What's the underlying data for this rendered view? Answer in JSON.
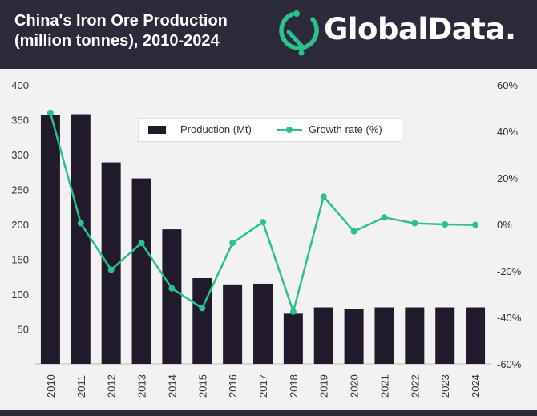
{
  "header": {
    "title_line1": "China's Iron Ore Production",
    "title_line2": "(million tonnes), 2010-2024",
    "brand": "GlobalData."
  },
  "colors": {
    "header_bg": "#2b2a3a",
    "bar": "#211a2c",
    "line": "#2ebf8e",
    "plot_bg": "#f2f2f2",
    "brand_accent": "#2ebf8e"
  },
  "icons": [
    "globaldata-logo-icon"
  ],
  "chart_data": {
    "type": "bar",
    "categories": [
      "2010",
      "2011",
      "2012",
      "2013",
      "2014",
      "2015",
      "2016",
      "2017",
      "2018",
      "2019",
      "2020",
      "2021",
      "2022",
      "2023",
      "2024"
    ],
    "series": [
      {
        "name": "Production (Mt)",
        "type": "bar",
        "axis": "left",
        "values": [
          357,
          358,
          289,
          266,
          193,
          123,
          114,
          115,
          72,
          81,
          79,
          81,
          81,
          81,
          81
        ]
      },
      {
        "name": "Growth rate (%)",
        "type": "line",
        "axis": "right",
        "values": [
          48,
          0.5,
          -19.5,
          -8,
          -27.5,
          -36,
          -8,
          1,
          -37.5,
          12,
          -3,
          3,
          0.5,
          0,
          -0.2
        ]
      }
    ],
    "left_axis": {
      "min": 0,
      "max": 400,
      "ticks": [
        "50",
        "100",
        "150",
        "200",
        "250",
        "300",
        "350",
        "400"
      ]
    },
    "right_axis": {
      "min": -60,
      "max": 60,
      "ticks": [
        "-60%",
        "-40%",
        "-20%",
        "0%",
        "20%",
        "40%",
        "60%"
      ]
    },
    "legend": {
      "position": "top-center",
      "bar_label": "Production (Mt)",
      "line_label": "Growth rate (%)"
    },
    "grid": false
  }
}
